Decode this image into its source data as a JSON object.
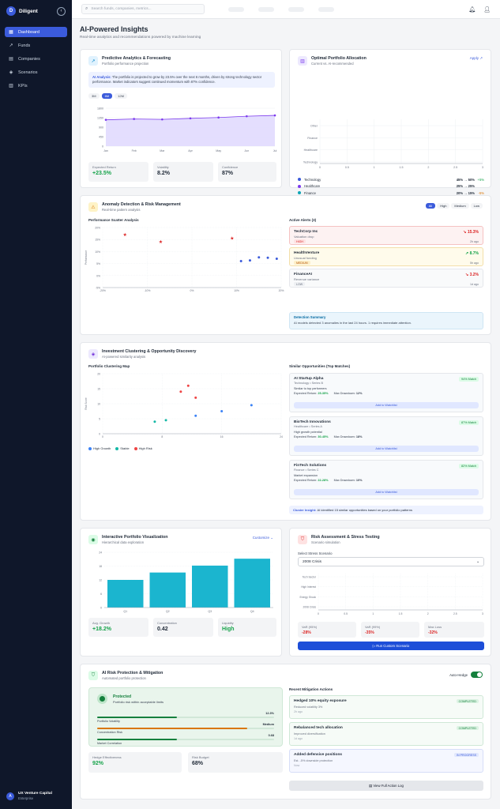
{
  "app": {
    "name": "Diligent",
    "logo_letter": "D"
  },
  "nav": [
    {
      "label": "Dashboard",
      "icon": "grid-icon",
      "active": true
    },
    {
      "label": "Funds",
      "icon": "trend-icon"
    },
    {
      "label": "Companies",
      "icon": "building-icon"
    },
    {
      "label": "Scenarios",
      "icon": "layers-icon"
    },
    {
      "label": "KPIs",
      "icon": "chart-icon"
    }
  ],
  "user": {
    "initial": "A",
    "name": "UX Venture Capital",
    "plan": "Enterprise"
  },
  "search": {
    "placeholder": "Search funds, companies, metrics..."
  },
  "page": {
    "title": "AI-Powered Insights",
    "subtitle": "Real-time analytics and recommendations powered by machine learning"
  },
  "predictive": {
    "title": "Predictive Analytics & Forecasting",
    "subtitle": "Portfolio performance projection",
    "analysis_label": "AI Analysis:",
    "analysis": "The portfolio is projected to grow by 23.5% over the next 6 months, driven by strong technology sector performance. Market indicators suggest continued momentum with 87% confidence.",
    "ranges": [
      "3M",
      "6M",
      "12M"
    ],
    "active_range": "6M",
    "stats": [
      {
        "k": "Expected Return",
        "v": "+23.5%"
      },
      {
        "k": "Volatility",
        "v": "8.2%"
      },
      {
        "k": "Confidence",
        "v": "87%"
      }
    ]
  },
  "predictive_chart": {
    "type": "area",
    "categories": [
      "Jan",
      "Feb",
      "Mar",
      "Apr",
      "May",
      "Jun",
      "Jul"
    ],
    "series": [
      {
        "values": [
          1250,
          1290,
          1270,
          1320,
          1360,
          1420,
          1460
        ]
      }
    ],
    "yticks": [
      "1800",
      "1350",
      "900",
      "450",
      "0"
    ],
    "ylim": [
      0,
      1800
    ]
  },
  "allocation": {
    "title": "Optimal Portfolio Allocation",
    "subtitle": "Current vs. AI-recommended",
    "link": "Apply",
    "rows": [
      {
        "name": "Technology",
        "value": "45% → 50%",
        "delta": "+5%",
        "color": "#3b5bdb"
      },
      {
        "name": "Healthcare",
        "value": "25% → 25%",
        "delta": "",
        "color": "#7c3aed"
      },
      {
        "name": "Finance",
        "value": "20% → 15%",
        "delta": "-5%",
        "color": "#0ea5b7"
      },
      {
        "name": "Other",
        "value": "10% → 10%",
        "delta": "",
        "color": "#6b7280"
      }
    ],
    "rec_label": "AI Recommendation",
    "rec": "Shift 5% from Finance to Technology to optimize risk-adjusted returns. Expected improvement: +2.3% annual return."
  },
  "allocation_chart": {
    "type": "bar",
    "categories": [
      "Other",
      "Finance",
      "Healthcare",
      "Technology"
    ],
    "xticks": [
      "0",
      "0.5",
      "1",
      "1.5",
      "2",
      "2.5",
      "3"
    ],
    "xlim": [
      0,
      3
    ]
  },
  "anomaly": {
    "title": "Anomaly Detection & Risk Management",
    "subtitle": "Real-time pattern analysis",
    "filters": [
      "All",
      "High",
      "Medium",
      "Low"
    ],
    "scatter_label": "Performance Scatter Analysis",
    "yaxis": "Performance",
    "alerts_label": "Active Alerts (3)",
    "alerts": [
      {
        "name": "TechCorp Inc",
        "desc": "Valuation drop",
        "level": "HIGH",
        "value": "↘ 15.3%",
        "time": "2h ago",
        "bg": "#fdf2f2",
        "border": "#f5c2c2",
        "lvbg": "#fde2e2",
        "lvcol": "#dc2626",
        "valcol": "#dc2626"
      },
      {
        "name": "HealthVenture",
        "desc": "Unusual funding",
        "level": "MEDIUM",
        "value": "↗ 8.7%",
        "time": "5h ago",
        "bg": "#fffbeb",
        "border": "#f3dfaa",
        "lvbg": "#fdefc8",
        "lvcol": "#b45309",
        "valcol": "#16a34a"
      },
      {
        "name": "FinanceAI",
        "desc": "Revenue variance",
        "level": "LOW",
        "value": "↘ 3.2%",
        "time": "1d ago",
        "bg": "#f9fafb",
        "border": "#e5e7eb",
        "lvbg": "#eef0f3",
        "lvcol": "#6b7280",
        "valcol": "#dc2626"
      }
    ],
    "summary_label": "Detection Summary",
    "summary": "AI models detected 3 anomalies in the last 24 hours. 1 requires immediate attention."
  },
  "anomaly_chart": {
    "type": "scatter",
    "xticks": [
      "-20%",
      "-10%",
      "0%",
      "10%",
      "20%"
    ],
    "yticks": [
      "20%",
      "15%",
      "10%",
      "5%",
      "0%",
      "-5%"
    ],
    "xlim": [
      -20,
      20
    ],
    "ylim": [
      -5,
      20
    ],
    "series": [
      {
        "name": "anomaly",
        "color": "#dc2626",
        "points": [
          [
            -15,
            17
          ],
          [
            -7,
            14
          ],
          [
            9,
            15.5
          ]
        ]
      },
      {
        "name": "normal",
        "color": "#3b5bdb",
        "points": [
          [
            11,
            6
          ],
          [
            13,
            6.3
          ],
          [
            15,
            7.6
          ],
          [
            17,
            7.4
          ],
          [
            19,
            7
          ]
        ]
      }
    ]
  },
  "clustering": {
    "title": "Investment Clustering & Opportunity Discovery",
    "subtitle": "AI-powered similarity analysis",
    "map_label": "Portfolio Clustering Map",
    "yaxis": "Risk Score",
    "legend": [
      {
        "name": "High Growth",
        "color": "#3b82f6"
      },
      {
        "name": "Stable",
        "color": "#14b8a6"
      },
      {
        "name": "High Risk",
        "color": "#ef4444"
      }
    ],
    "opps_label": "Similar Opportunities (Top Matches)",
    "opps": [
      {
        "name": "AI Startup Alpha",
        "sector": "Technology • Series B",
        "note": "Similar to top performers",
        "return_label": "Expected Return:",
        "ret": "25-35%",
        "dd_label": "Max Drawdown:",
        "dd": "12%",
        "match": "94% Match",
        "btn": "Add to Watchlist"
      },
      {
        "name": "BioTech Innovations",
        "sector": "Healthcare • Series A",
        "note": "High growth potential",
        "return_label": "Expected Return:",
        "ret": "30-45%",
        "dd_label": "Max Drawdown:",
        "dd": "18%",
        "match": "87% Match",
        "btn": "Add to Watchlist"
      },
      {
        "name": "FinTech Solutions",
        "sector": "Finance • Series C",
        "note": "Market expansion",
        "return_label": "Expected Return:",
        "ret": "22-28%",
        "dd_label": "Max Drawdown:",
        "dd": "10%",
        "match": "82% Match",
        "btn": "Add to Watchlist"
      }
    ],
    "insight_label": "Cluster Insight:",
    "insight": "AI identified 15 similar opportunities based on your portfolio patterns"
  },
  "clustering_chart": {
    "type": "scatter",
    "xticks": [
      "0",
      "8",
      "16",
      "24"
    ],
    "yticks": [
      "20",
      "15",
      "10",
      "5",
      "0"
    ],
    "xlim": [
      0,
      24
    ],
    "ylim": [
      0,
      20
    ],
    "series": [
      {
        "name": "High Growth",
        "color": "#3b82f6",
        "points": [
          [
            12.5,
            6
          ],
          [
            16,
            7.5
          ],
          [
            20,
            9.5
          ]
        ]
      },
      {
        "name": "Stable",
        "color": "#14b8a6",
        "points": [
          [
            7,
            4
          ],
          [
            8.5,
            4.5
          ]
        ]
      },
      {
        "name": "High Risk",
        "color": "#ef4444",
        "points": [
          [
            10.5,
            14
          ],
          [
            11.5,
            16
          ],
          [
            12.5,
            12
          ]
        ]
      }
    ]
  },
  "interactive": {
    "title": "Interactive Portfolio Visualization",
    "subtitle": "Hierarchical data exploration",
    "link": "Customize",
    "stats": [
      {
        "k": "Avg. Growth",
        "v": "+18.2%"
      },
      {
        "k": "Concentration",
        "v": "0.42"
      },
      {
        "k": "Liquidity",
        "v": "High"
      }
    ]
  },
  "interactive_chart": {
    "type": "bar",
    "categories": [
      "Q1",
      "Q2",
      "Q3",
      "Q4"
    ],
    "values": [
      12,
      15.2,
      18.2,
      21.2
    ],
    "yticks": [
      "24",
      "18",
      "12",
      "6",
      "0"
    ],
    "ylim": [
      0,
      24
    ],
    "color": "#1bb5cf"
  },
  "stress": {
    "title": "Risk Assessment & Stress Testing",
    "subtitle": "Scenario simulation",
    "select_label": "Select Stress Scenario",
    "selected": "2008 Crisis",
    "stats": [
      {
        "k": "VaR (95%)",
        "v": "-28%"
      },
      {
        "k": "VaR (99%)",
        "v": "-35%"
      },
      {
        "k": "Max Loss",
        "v": "-32%"
      }
    ],
    "btn": "Run Custom Scenario"
  },
  "stress_chart": {
    "type": "bar",
    "categories": [
      "Tech Sector",
      "High Interest",
      "Energy Shock",
      "2008 Crisis"
    ],
    "xticks": [
      "0",
      "0.5",
      "1",
      "1.5",
      "2",
      "2.5",
      "3"
    ],
    "xlim": [
      0,
      3
    ]
  },
  "protection": {
    "title": "AI Risk Protection & Mitigation",
    "subtitle": "Automated portfolio protection",
    "auto_label": "Auto-Hedge",
    "status": "Protected",
    "status_sub": "Portfolio risk within acceptable limits",
    "meters": [
      {
        "k": "Portfolio Volatility",
        "v": "12.3%",
        "fill": 0.45,
        "color": "#15803d"
      },
      {
        "k": "Concentration Risk",
        "v": "Medium",
        "fill": 0.85,
        "color": "#d97706"
      },
      {
        "k": "Market Correlation",
        "v": "0.68",
        "fill": 0.45,
        "color": "#15803d"
      }
    ],
    "stats": [
      {
        "k": "Hedge Effectiveness",
        "v": "92%"
      },
      {
        "k": "Risk Budget",
        "v": "68%"
      }
    ],
    "actions_label": "Recent Mitigation Actions",
    "actions": [
      {
        "name": "Hedged 10% equity exposure",
        "desc": "Reduced volatility 3%",
        "time": "2h ago",
        "status": "COMPLETED",
        "bg": "#f6fbf7",
        "border": "#cfe8d6",
        "sbg": "#dcf3e3",
        "scol": "#15803d"
      },
      {
        "name": "Rebalanced tech allocation",
        "desc": "Improved diversification",
        "time": "1d ago",
        "status": "COMPLETED",
        "bg": "#f6fbf7",
        "border": "#cfe8d6",
        "sbg": "#dcf3e3",
        "scol": "#15803d"
      },
      {
        "name": "Added defensive positions",
        "desc": "Est. -5% downside protection",
        "time": "Now",
        "status": "IN PROGRESS",
        "bg": "#f5f7ff",
        "border": "#d7def8",
        "sbg": "#e1e7fd",
        "scol": "#3b5bdb"
      }
    ],
    "log_btn": "View Full Action Log"
  }
}
